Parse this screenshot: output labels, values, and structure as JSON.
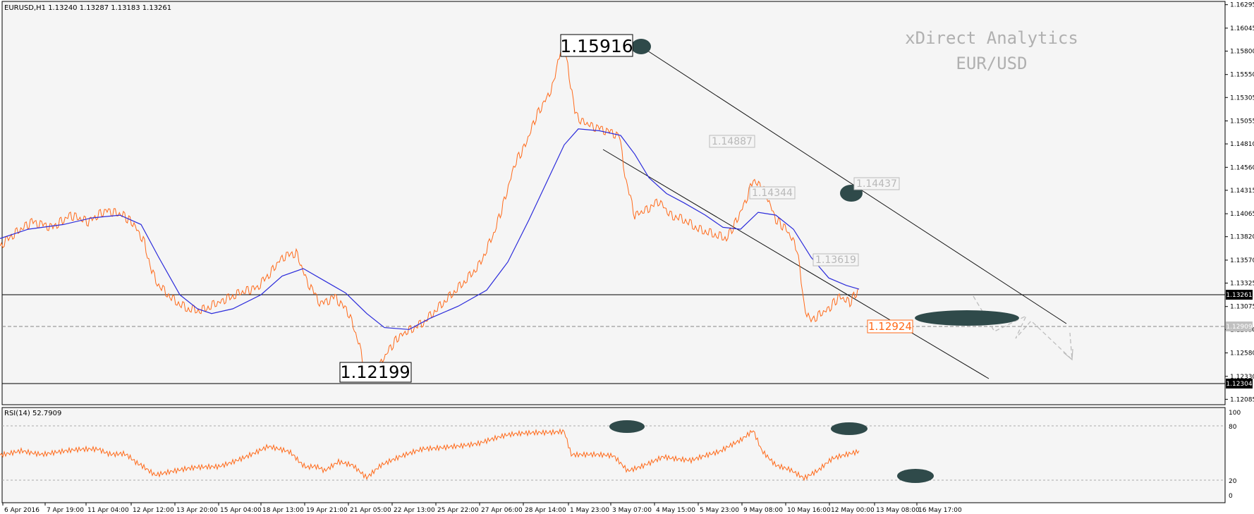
{
  "header": {
    "symbol_info": "EURUSD,H1  1.13240 1.13287 1.13183 1.13261"
  },
  "watermark": {
    "line1": "xDirect Analytics",
    "line2": "EUR/USD"
  },
  "price_axis": {
    "ticks": [
      "1.16295",
      "1.16045",
      "1.15800",
      "1.15550",
      "1.15305",
      "1.15055",
      "1.14810",
      "1.14560",
      "1.14315",
      "1.14065",
      "1.13820",
      "1.13570",
      "1.13325",
      "1.13075",
      "1.12830",
      "1.12580",
      "1.12330",
      "1.12085"
    ],
    "current_price_label": "1.13261",
    "dashed_level_label": "1.12909",
    "support_level_label": "1.12304"
  },
  "annotations": {
    "high_label": "1.15916",
    "low_label": "1.12199",
    "label_14887": "1.14887",
    "label_14437": "1.14437",
    "label_14344": "1.14344",
    "label_13619": "1.13619",
    "label_12924": "1.12924"
  },
  "rsi_panel": {
    "label": "RSI(14) 52.7909",
    "ticks": [
      "100",
      "80",
      "20",
      "0"
    ]
  },
  "time_axis": {
    "ticks": [
      "6 Apr 2016",
      "7 Apr 19:00",
      "11 Apr 04:00",
      "12 Apr 12:00",
      "13 Apr 20:00",
      "15 Apr 04:00",
      "18 Apr 13:00",
      "19 Apr 21:00",
      "21 Apr 05:00",
      "22 Apr 13:00",
      "25 Apr 22:00",
      "27 Apr 06:00",
      "28 Apr 14:00",
      "1 May 23:00",
      "3 May 07:00",
      "4 May 15:00",
      "5 May 23:00",
      "9 May 08:00",
      "10 May 16:00",
      "12 May 00:00",
      "13 May 08:00",
      "16 May 17:00"
    ]
  },
  "colors": {
    "price_line": "#ff6a1a",
    "ma_line": "#2b2bdb",
    "markers": "#2f4a4a",
    "background": "#f5f5f5"
  },
  "chart_data": {
    "type": "line",
    "title": "EURUSD,H1",
    "ylim": [
      1.1208,
      1.163
    ],
    "key_levels": {
      "high": 1.15916,
      "low": 1.12199,
      "current": 1.13261,
      "dashed": 1.12909,
      "support": 1.12304
    },
    "price_path": [
      [
        0,
        1.1372
      ],
      [
        20,
        1.1385
      ],
      [
        45,
        1.1398
      ],
      [
        75,
        1.1392
      ],
      [
        100,
        1.1405
      ],
      [
        125,
        1.1398
      ],
      [
        150,
        1.141
      ],
      [
        175,
        1.1405
      ],
      [
        190,
        1.1395
      ],
      [
        205,
        1.1375
      ],
      [
        215,
        1.1345
      ],
      [
        225,
        1.133
      ],
      [
        245,
        1.1315
      ],
      [
        265,
        1.1305
      ],
      [
        285,
        1.1303
      ],
      [
        305,
        1.131
      ],
      [
        320,
        1.1315
      ],
      [
        340,
        1.1322
      ],
      [
        365,
        1.1328
      ],
      [
        385,
        1.1345
      ],
      [
        400,
        1.136
      ],
      [
        420,
        1.1365
      ],
      [
        435,
        1.1335
      ],
      [
        455,
        1.131
      ],
      [
        475,
        1.1318
      ],
      [
        495,
        1.13
      ],
      [
        510,
        1.1265
      ],
      [
        520,
        1.123
      ],
      [
        535,
        1.124
      ],
      [
        550,
        1.126
      ],
      [
        565,
        1.1275
      ],
      [
        580,
        1.1282
      ],
      [
        600,
        1.129
      ],
      [
        620,
        1.1305
      ],
      [
        640,
        1.132
      ],
      [
        660,
        1.1335
      ],
      [
        680,
        1.1352
      ],
      [
        700,
        1.1385
      ],
      [
        715,
        1.142
      ],
      [
        730,
        1.146
      ],
      [
        745,
        1.148
      ],
      [
        760,
        1.151
      ],
      [
        775,
        1.153
      ],
      [
        785,
        1.1545
      ],
      [
        797,
        1.1592
      ],
      [
        805,
        1.1565
      ],
      [
        815,
        1.1515
      ],
      [
        825,
        1.1505
      ],
      [
        840,
        1.15
      ],
      [
        860,
        1.1495
      ],
      [
        878,
        1.149
      ],
      [
        888,
        1.144
      ],
      [
        900,
        1.1405
      ],
      [
        915,
        1.141
      ],
      [
        935,
        1.142
      ],
      [
        950,
        1.1405
      ],
      [
        970,
        1.14
      ],
      [
        990,
        1.139
      ],
      [
        1010,
        1.1385
      ],
      [
        1030,
        1.138
      ],
      [
        1045,
        1.14
      ],
      [
        1060,
        1.1425
      ],
      [
        1068,
        1.1443
      ],
      [
        1085,
        1.143
      ],
      [
        1100,
        1.14
      ],
      [
        1115,
        1.139
      ],
      [
        1130,
        1.137
      ],
      [
        1140,
        1.131
      ],
      [
        1148,
        1.1292
      ],
      [
        1160,
        1.1298
      ],
      [
        1175,
        1.1305
      ],
      [
        1190,
        1.1318
      ],
      [
        1205,
        1.1312
      ],
      [
        1218,
        1.1326
      ]
    ],
    "moving_average_path": [
      [
        0,
        1.138
      ],
      [
        40,
        1.139
      ],
      [
        90,
        1.1395
      ],
      [
        130,
        1.1402
      ],
      [
        170,
        1.1405
      ],
      [
        200,
        1.1395
      ],
      [
        225,
        1.136
      ],
      [
        255,
        1.132
      ],
      [
        280,
        1.1305
      ],
      [
        300,
        1.13
      ],
      [
        330,
        1.1305
      ],
      [
        370,
        1.132
      ],
      [
        400,
        1.134
      ],
      [
        430,
        1.1348
      ],
      [
        460,
        1.1335
      ],
      [
        490,
        1.1322
      ],
      [
        520,
        1.13
      ],
      [
        545,
        1.1285
      ],
      [
        580,
        1.1283
      ],
      [
        610,
        1.1295
      ],
      [
        650,
        1.1308
      ],
      [
        690,
        1.1325
      ],
      [
        720,
        1.1355
      ],
      [
        750,
        1.14
      ],
      [
        775,
        1.144
      ],
      [
        800,
        1.148
      ],
      [
        820,
        1.1497
      ],
      [
        850,
        1.1495
      ],
      [
        880,
        1.149
      ],
      [
        900,
        1.147
      ],
      [
        920,
        1.1445
      ],
      [
        945,
        1.1428
      ],
      [
        970,
        1.1418
      ],
      [
        1000,
        1.1405
      ],
      [
        1025,
        1.1392
      ],
      [
        1050,
        1.139
      ],
      [
        1075,
        1.1408
      ],
      [
        1100,
        1.1405
      ],
      [
        1125,
        1.139
      ],
      [
        1150,
        1.136
      ],
      [
        1175,
        1.1338
      ],
      [
        1200,
        1.133
      ],
      [
        1218,
        1.1326
      ]
    ],
    "rsi_path": [
      [
        0,
        48
      ],
      [
        30,
        55
      ],
      [
        60,
        50
      ],
      [
        100,
        52
      ],
      [
        140,
        54
      ],
      [
        175,
        48
      ],
      [
        200,
        38
      ],
      [
        220,
        25
      ],
      [
        250,
        28
      ],
      [
        280,
        32
      ],
      [
        310,
        35
      ],
      [
        340,
        45
      ],
      [
        380,
        58
      ],
      [
        410,
        50
      ],
      [
        435,
        35
      ],
      [
        460,
        30
      ],
      [
        480,
        42
      ],
      [
        500,
        38
      ],
      [
        520,
        22
      ],
      [
        540,
        35
      ],
      [
        570,
        45
      ],
      [
        600,
        55
      ],
      [
        640,
        60
      ],
      [
        680,
        62
      ],
      [
        720,
        70
      ],
      [
        760,
        75
      ],
      [
        800,
        78
      ],
      [
        810,
        50
      ],
      [
        840,
        48
      ],
      [
        870,
        45
      ],
      [
        890,
        28
      ],
      [
        910,
        35
      ],
      [
        940,
        48
      ],
      [
        980,
        42
      ],
      [
        1020,
        50
      ],
      [
        1050,
        65
      ],
      [
        1068,
        78
      ],
      [
        1080,
        55
      ],
      [
        1100,
        38
      ],
      [
        1120,
        32
      ],
      [
        1140,
        20
      ],
      [
        1160,
        28
      ],
      [
        1180,
        42
      ],
      [
        1200,
        48
      ],
      [
        1218,
        53
      ]
    ],
    "rsi_ylim": [
      0,
      100
    ]
  }
}
